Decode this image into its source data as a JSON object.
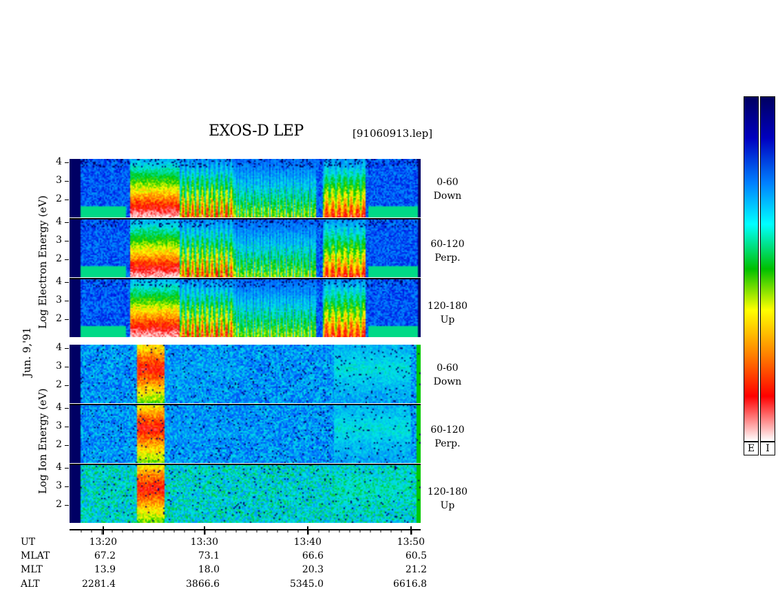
{
  "title": "EXOS-D LEP",
  "filename": "[91060913.lep]",
  "date_label": "Jun. 9,'91",
  "electron_ylabel": "Log  Electron  Energy (eV)",
  "ion_ylabel": "Log   Ion  Energy (eV)",
  "y_ticks": [
    "4",
    "3",
    "2"
  ],
  "panels": [
    {
      "species": "electron",
      "angle": "0-60",
      "direction": "Down"
    },
    {
      "species": "electron",
      "angle": "60-120",
      "direction": "Perp."
    },
    {
      "species": "electron",
      "angle": "120-180",
      "direction": "Up"
    },
    {
      "species": "ion",
      "angle": "0-60",
      "direction": "Down"
    },
    {
      "species": "ion",
      "angle": "60-120",
      "direction": "Perp."
    },
    {
      "species": "ion",
      "angle": "120-180",
      "direction": "Up"
    }
  ],
  "colorbar": {
    "labels": [
      "E",
      "I"
    ],
    "colors": [
      "#ffffff",
      "#ff0000",
      "#ff8000",
      "#ffff00",
      "#00c000",
      "#00ffff",
      "#0080ff",
      "#0000c0",
      "#000060"
    ]
  },
  "chart_data": {
    "type": "heatmap",
    "title": "EXOS-D LEP",
    "x_ticks": [
      "13:20",
      "13:30",
      "13:40",
      "13:50"
    ],
    "y_ticks": [
      "4",
      "3",
      "2"
    ],
    "ephemeris": {
      "UT": [
        "13:20",
        "13:30",
        "13:40",
        "13:50"
      ],
      "MLAT": [
        "67.2",
        "73.1",
        "66.6",
        "60.5"
      ],
      "MLT": [
        "13.9",
        "18.0",
        "20.3",
        "21.2"
      ],
      "ALT": [
        "2281.4",
        "3866.6",
        "5345.0",
        "6616.8"
      ]
    }
  }
}
